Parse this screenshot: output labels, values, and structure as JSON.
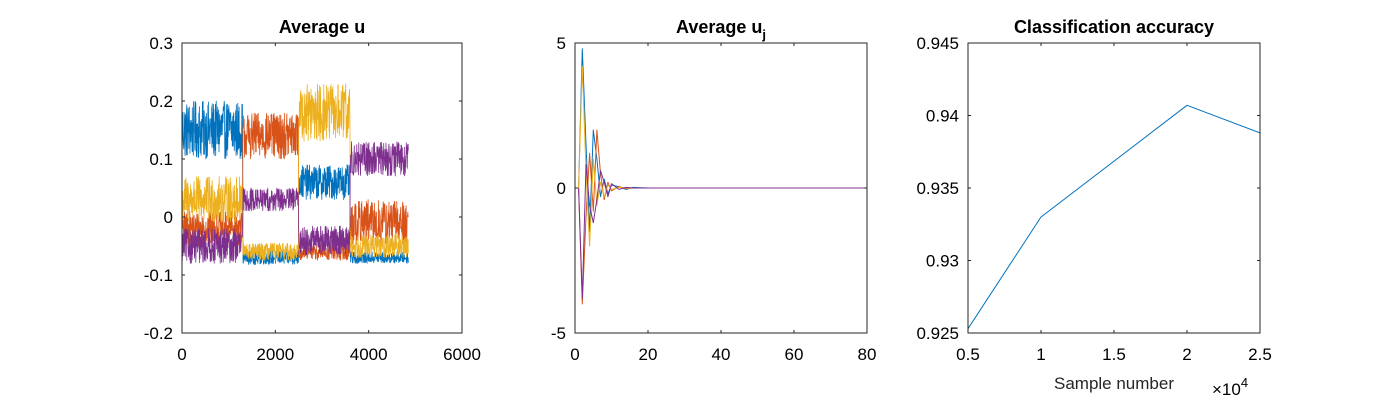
{
  "colors": {
    "blue": "#0072BD",
    "orange": "#D95319",
    "yellow": "#EDB120",
    "purple": "#7E2F8E",
    "axis": "#262626"
  },
  "chart_data": [
    {
      "type": "line",
      "title": "Average u",
      "title_main": "Average u",
      "title_sub": "",
      "xlabel": "",
      "ylabel": "",
      "xlim": [
        0,
        6000
      ],
      "ylim": [
        -0.2,
        0.3
      ],
      "xticks": [
        0,
        2000,
        4000,
        6000
      ],
      "xtick_labels": [
        "0",
        "2000",
        "4000",
        "6000"
      ],
      "yticks": [
        -0.2,
        -0.1,
        0,
        0.1,
        0.2,
        0.3
      ],
      "ytick_labels": [
        "-0.2",
        "-0.1",
        "0",
        "0.1",
        "0.2",
        "0.3"
      ],
      "grid": false,
      "legend": "none",
      "noisy": true,
      "series": [
        {
          "color": "#0072BD",
          "x": [
            0,
            1300,
            1300,
            2500,
            2500,
            3600,
            3600,
            4850
          ],
          "center": [
            0.15,
            0.15,
            -0.07,
            -0.07,
            0.06,
            0.06,
            -0.07,
            -0.07
          ],
          "spread": [
            0.05,
            0.05,
            0.012,
            0.012,
            0.03,
            0.03,
            0.01,
            0.01
          ]
        },
        {
          "color": "#D95319",
          "x": [
            0,
            1300,
            1300,
            2500,
            2500,
            3600,
            3600,
            4850
          ],
          "center": [
            -0.02,
            -0.02,
            0.14,
            0.14,
            -0.06,
            -0.06,
            -0.01,
            -0.01
          ],
          "spread": [
            0.03,
            0.03,
            0.04,
            0.04,
            0.015,
            0.015,
            0.04,
            0.04
          ]
        },
        {
          "color": "#EDB120",
          "x": [
            0,
            1300,
            1300,
            2500,
            2500,
            3600,
            3600,
            4850
          ],
          "center": [
            0.03,
            0.03,
            -0.06,
            -0.06,
            0.18,
            0.18,
            -0.05,
            -0.05
          ],
          "spread": [
            0.04,
            0.04,
            0.015,
            0.015,
            0.05,
            0.05,
            0.02,
            0.02
          ]
        },
        {
          "color": "#7E2F8E",
          "x": [
            0,
            1300,
            1300,
            2500,
            2500,
            3600,
            3600,
            4850
          ],
          "center": [
            -0.05,
            -0.05,
            0.03,
            0.03,
            -0.04,
            -0.04,
            0.1,
            0.1
          ],
          "spread": [
            0.03,
            0.03,
            0.02,
            0.02,
            0.025,
            0.025,
            0.03,
            0.03
          ]
        }
      ]
    },
    {
      "type": "line",
      "title": "Average u_j",
      "title_main": "Average u",
      "title_sub": "j",
      "xlabel": "",
      "ylabel": "",
      "xlim": [
        0,
        80
      ],
      "ylim": [
        -5,
        5
      ],
      "xticks": [
        0,
        20,
        40,
        60,
        80
      ],
      "xtick_labels": [
        "0",
        "20",
        "40",
        "60",
        "80"
      ],
      "yticks": [
        -5,
        0,
        5
      ],
      "ytick_labels": [
        "-5",
        "0",
        "5"
      ],
      "grid": false,
      "legend": "none",
      "series": [
        {
          "color": "#0072BD",
          "x": [
            1,
            2,
            3,
            4,
            5,
            6,
            7,
            8,
            9,
            10,
            12,
            14,
            16,
            20,
            30,
            80
          ],
          "y": [
            0,
            4.8,
            1.5,
            -1.5,
            2.0,
            1.0,
            -0.3,
            0.3,
            -0.2,
            0.1,
            0.05,
            -0.05,
            0.02,
            0,
            0,
            0
          ]
        },
        {
          "color": "#D95319",
          "x": [
            1,
            2,
            3,
            4,
            5,
            6,
            7,
            8,
            9,
            10,
            12,
            14,
            16,
            20,
            30,
            80
          ],
          "y": [
            0,
            -4.0,
            -1.0,
            1.2,
            -0.8,
            2.0,
            0.5,
            -0.4,
            0.2,
            -0.1,
            0.05,
            -0.02,
            0,
            0,
            0,
            0
          ]
        },
        {
          "color": "#EDB120",
          "x": [
            1,
            2,
            3,
            4,
            5,
            6,
            7,
            8,
            9,
            10,
            12,
            14,
            16,
            20,
            30,
            80
          ],
          "y": [
            0,
            4.2,
            0.6,
            -2.0,
            1.0,
            -0.6,
            0.2,
            -0.3,
            0.1,
            -0.05,
            0.02,
            0,
            0,
            0,
            0,
            0
          ]
        },
        {
          "color": "#7E2F8E",
          "x": [
            1,
            2,
            3,
            4,
            5,
            6,
            7,
            8,
            9,
            10,
            12,
            14,
            16,
            20,
            30,
            80
          ],
          "y": [
            0,
            -3.8,
            0.8,
            -0.6,
            -1.2,
            -0.4,
            0.6,
            0.2,
            -0.3,
            0.15,
            -0.05,
            0.02,
            0,
            0,
            0,
            0
          ]
        }
      ]
    },
    {
      "type": "line",
      "title": "Classification accuracy",
      "title_main": "Classification accuracy",
      "title_sub": "",
      "xlabel": "Sample number",
      "ylabel": "",
      "x_exponent_label": "×10",
      "x_exponent_power": "4",
      "xlim": [
        5000,
        25000
      ],
      "ylim": [
        0.925,
        0.945
      ],
      "xticks": [
        5000,
        10000,
        15000,
        20000,
        25000
      ],
      "xtick_labels": [
        "0.5",
        "1",
        "1.5",
        "2",
        "2.5"
      ],
      "yticks": [
        0.925,
        0.93,
        0.935,
        0.94,
        0.945
      ],
      "ytick_labels": [
        "0.925",
        "0.93",
        "0.935",
        "0.94",
        "0.945"
      ],
      "grid": false,
      "legend": "none",
      "series": [
        {
          "color": "#0072BD",
          "x": [
            5000,
            10000,
            20000,
            25000
          ],
          "y": [
            0.9253,
            0.933,
            0.9407,
            0.9388
          ]
        }
      ]
    }
  ]
}
